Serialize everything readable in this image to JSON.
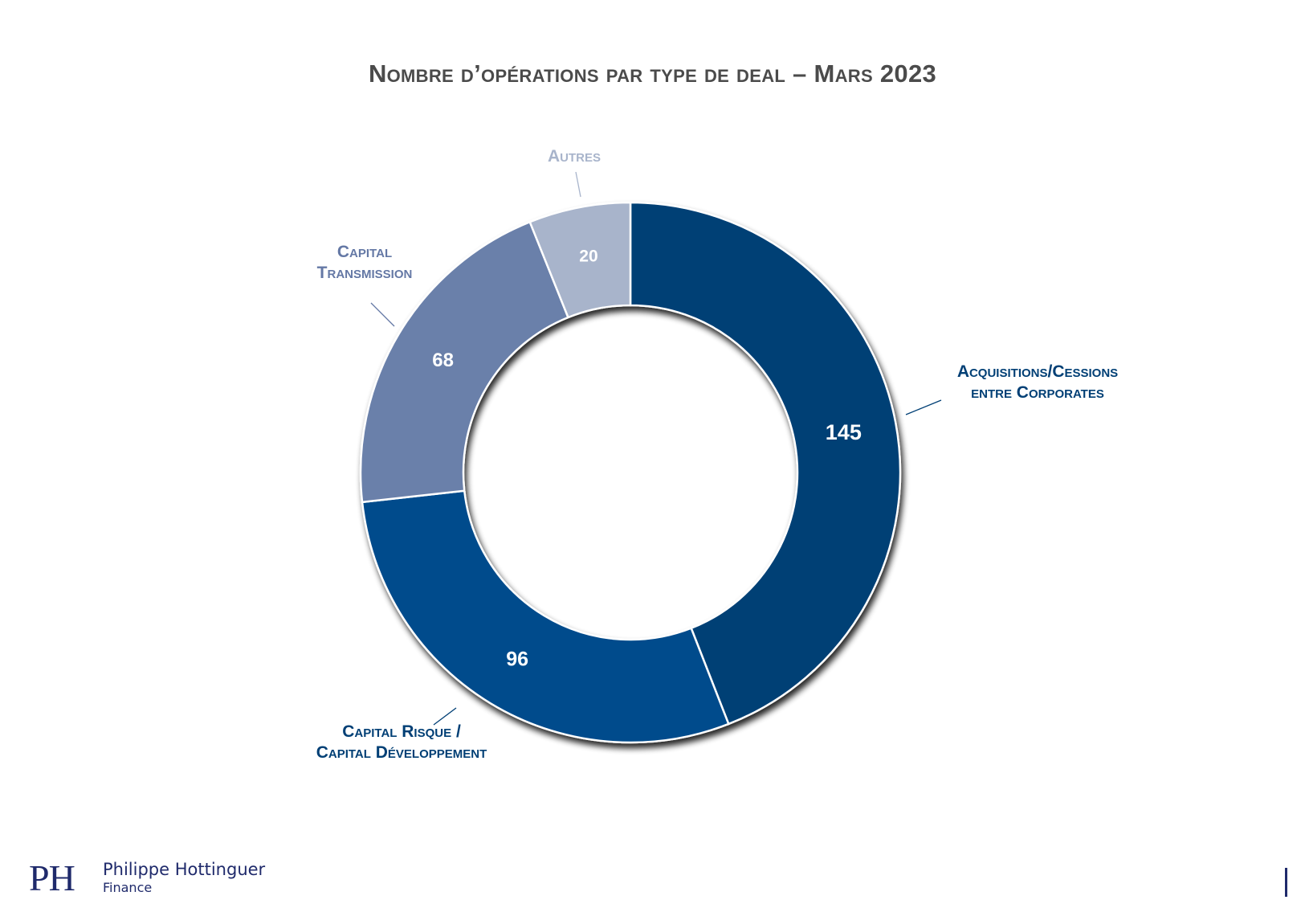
{
  "chart_data": {
    "type": "pie",
    "title": "Nombre d’opérations par type de deal – Mars 2023",
    "style": "donut",
    "slices": [
      {
        "label_lines": [
          "Acquisitions/Cessions",
          "entre Corporates"
        ],
        "value": 145,
        "value_label": "145",
        "color": "#003f75",
        "label_color": "#003f75"
      },
      {
        "label_lines": [
          "Capital Risque /",
          "Capital Développement"
        ],
        "value": 96,
        "value_label": "96",
        "color": "#004b8c",
        "label_color": "#003f75"
      },
      {
        "label_lines": [
          "Capital",
          "Transmission"
        ],
        "value": 68,
        "value_label": "68",
        "color": "#6b80aa",
        "label_color": "#6478a5"
      },
      {
        "label_lines": [
          "Autres"
        ],
        "value": 20,
        "value_label": "20",
        "color": "#a8b4cb",
        "label_color": "#a8b4cb"
      }
    ],
    "legend": "none"
  },
  "brand": {
    "mark": "PH",
    "name": "Philippe Hottinguer",
    "sub": "Finance",
    "color": "#1f2a6b"
  }
}
